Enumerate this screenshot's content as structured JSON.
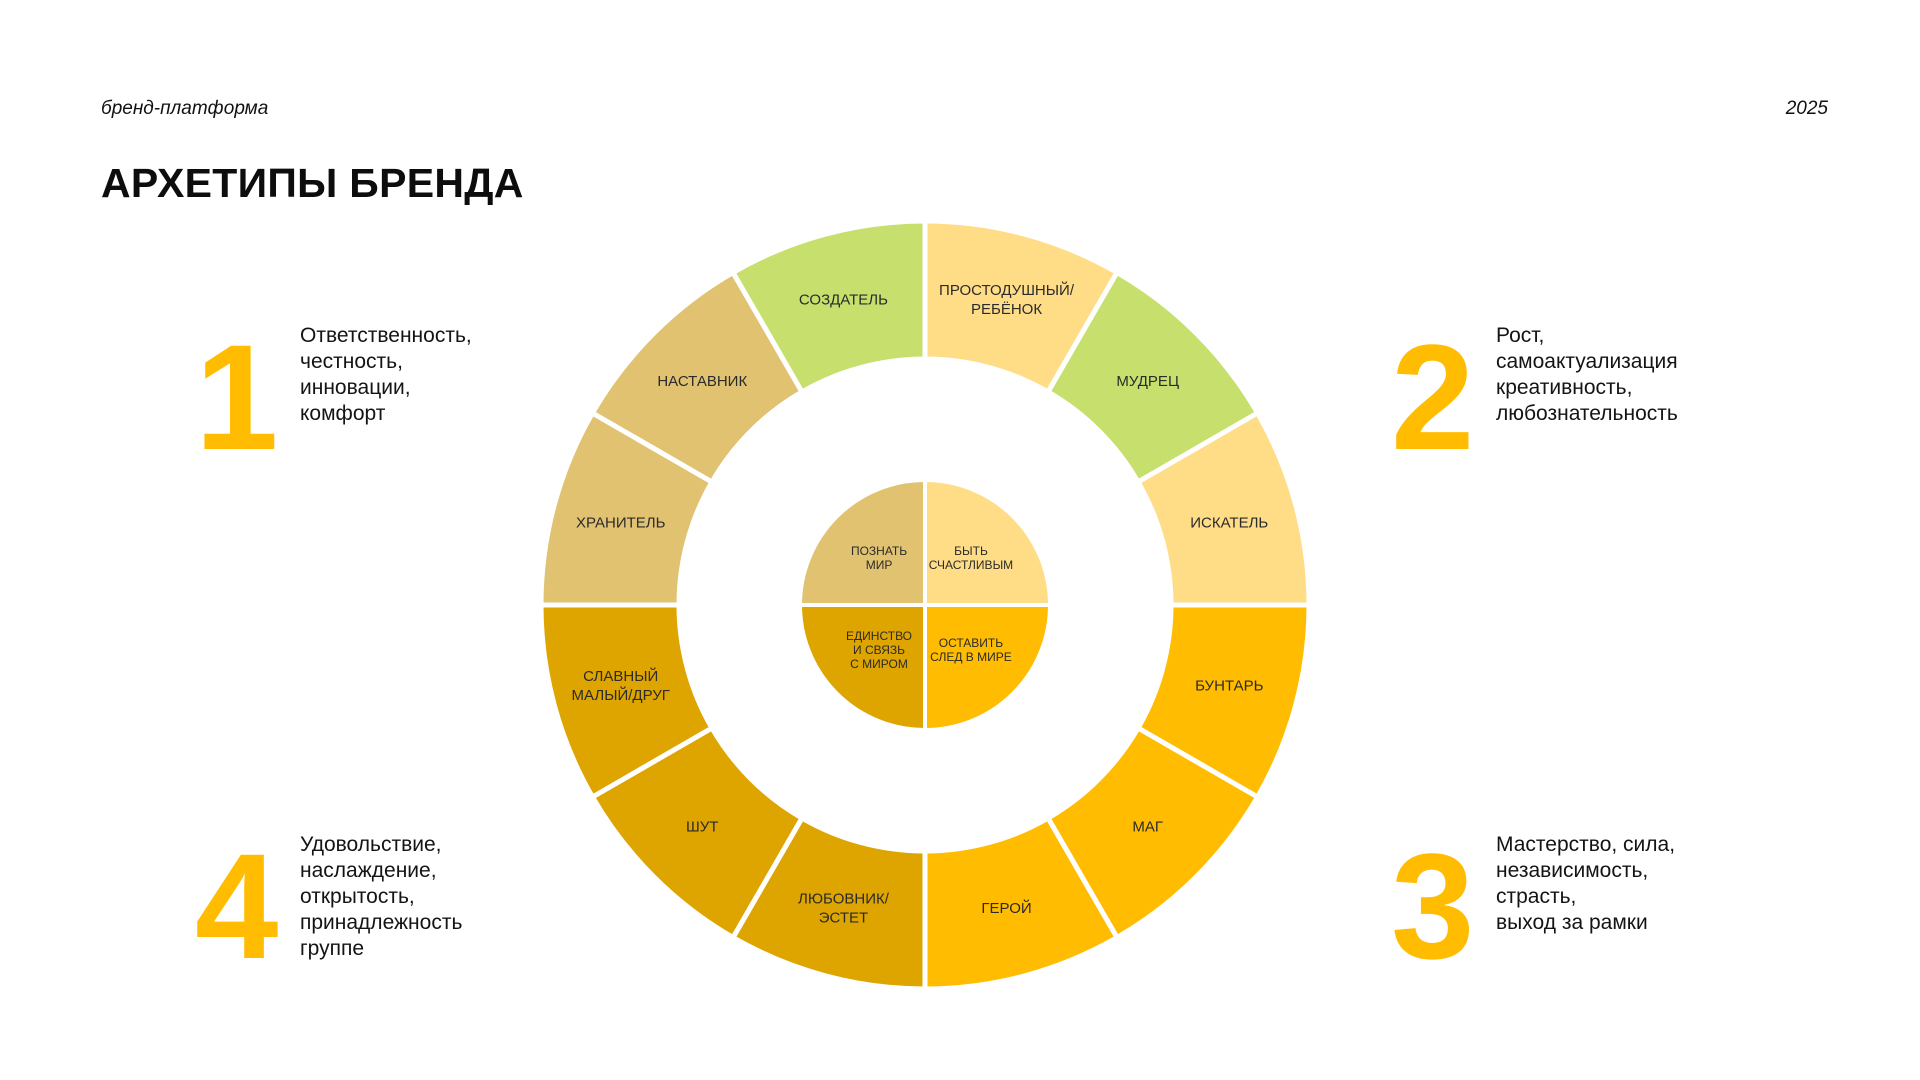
{
  "header": {
    "label": "бренд-платформа",
    "year": "2025"
  },
  "title": "АРХЕТИПЫ БРЕНДА",
  "colors": {
    "green": "#c6df6d",
    "light_yellow": "#ffdc86",
    "tan": "#e0c271",
    "dark_gold": "#dea400",
    "bright_yellow": "#ffbc00",
    "number": "#ffbc00",
    "divider": "#ffffff"
  },
  "wheel": {
    "core": [
      {
        "lines": [
          "ПОЗНАТЬ",
          "МИР"
        ],
        "color": "tan"
      },
      {
        "lines": [
          "БЫТЬ",
          "СЧАСТЛИВЫМ"
        ],
        "color": "light_yellow"
      },
      {
        "lines": [
          "ОСТАВИТЬ",
          "СЛЕД В МИРЕ"
        ],
        "color": "bright_yellow"
      },
      {
        "lines": [
          "ЕДИНСТВО",
          "И СВЯЗЬ",
          "С МИРОМ"
        ],
        "color": "dark_gold"
      }
    ],
    "segments": [
      {
        "lines": [
          "ПРОСТОДУШНЫЙ/",
          "РЕБЁНОК"
        ],
        "color": "light_yellow"
      },
      {
        "lines": [
          "МУДРЕЦ"
        ],
        "color": "green"
      },
      {
        "lines": [
          "ИСКАТЕЛЬ"
        ],
        "color": "light_yellow"
      },
      {
        "lines": [
          "БУНТАРЬ"
        ],
        "color": "bright_yellow"
      },
      {
        "lines": [
          "МАГ"
        ],
        "color": "bright_yellow"
      },
      {
        "lines": [
          "ГЕРОЙ"
        ],
        "color": "bright_yellow"
      },
      {
        "lines": [
          "ЛЮБОВНИК/",
          "ЭСТЕТ"
        ],
        "color": "dark_gold"
      },
      {
        "lines": [
          "ШУТ"
        ],
        "color": "dark_gold"
      },
      {
        "lines": [
          "СЛАВНЫЙ",
          "МАЛЫЙ/ДРУГ"
        ],
        "color": "dark_gold"
      },
      {
        "lines": [
          "ХРАНИТЕЛЬ"
        ],
        "color": "tan"
      },
      {
        "lines": [
          "НАСТАВНИК"
        ],
        "color": "tan"
      },
      {
        "lines": [
          "СОЗДАТЕЛЬ"
        ],
        "color": "green"
      }
    ]
  },
  "groups": [
    {
      "number": "1",
      "lines": [
        "Ответственность,",
        "честность,",
        "инновации,",
        "комфорт"
      ]
    },
    {
      "number": "2",
      "lines": [
        "Рост,",
        "самоактуализация",
        "креативность,",
        "любознательность"
      ]
    },
    {
      "number": "3",
      "lines": [
        "Мастерство, сила,",
        "независимость,",
        "страсть,",
        "выход за рамки"
      ]
    },
    {
      "number": "4",
      "lines": [
        "Удовольствие,",
        "наслаждение,",
        "открытость,",
        "принадлежность",
        "группе"
      ]
    }
  ]
}
